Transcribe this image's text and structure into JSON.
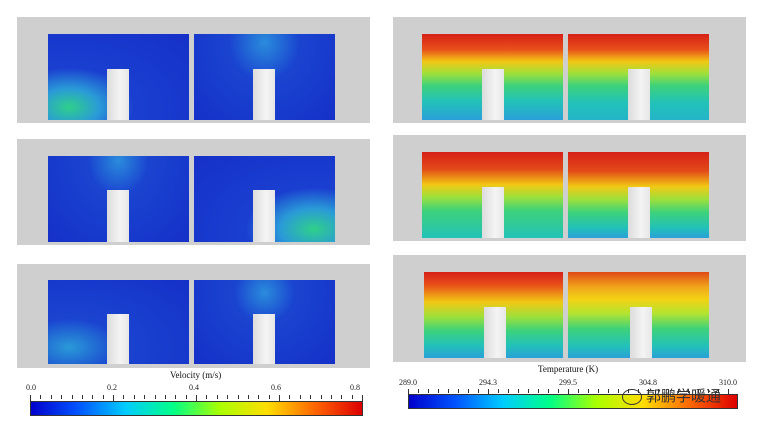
{
  "velocity_colorbar": {
    "title": "Velocity (m/s)",
    "ticks": [
      "0.0",
      "0.2",
      "0.4",
      "0.6",
      "0.8"
    ],
    "range": [
      0.0,
      0.8
    ],
    "colormap": [
      "#0000cc",
      "#0055ff",
      "#00ccff",
      "#00ff88",
      "#aaff00",
      "#ffdd00",
      "#ff6600",
      "#dd0000"
    ]
  },
  "temperature_colorbar": {
    "title": "Temperature (K)",
    "ticks": [
      "289.0",
      "294.3",
      "299.5",
      "304.8",
      "310.0"
    ],
    "range": [
      289.0,
      310.0
    ],
    "colormap": [
      "#0000cc",
      "#0055ff",
      "#00ccff",
      "#00ff88",
      "#aaff00",
      "#ffdd00",
      "#ff6600",
      "#dd0000"
    ]
  },
  "watermark": {
    "text": "郭鹏学暖通"
  }
}
